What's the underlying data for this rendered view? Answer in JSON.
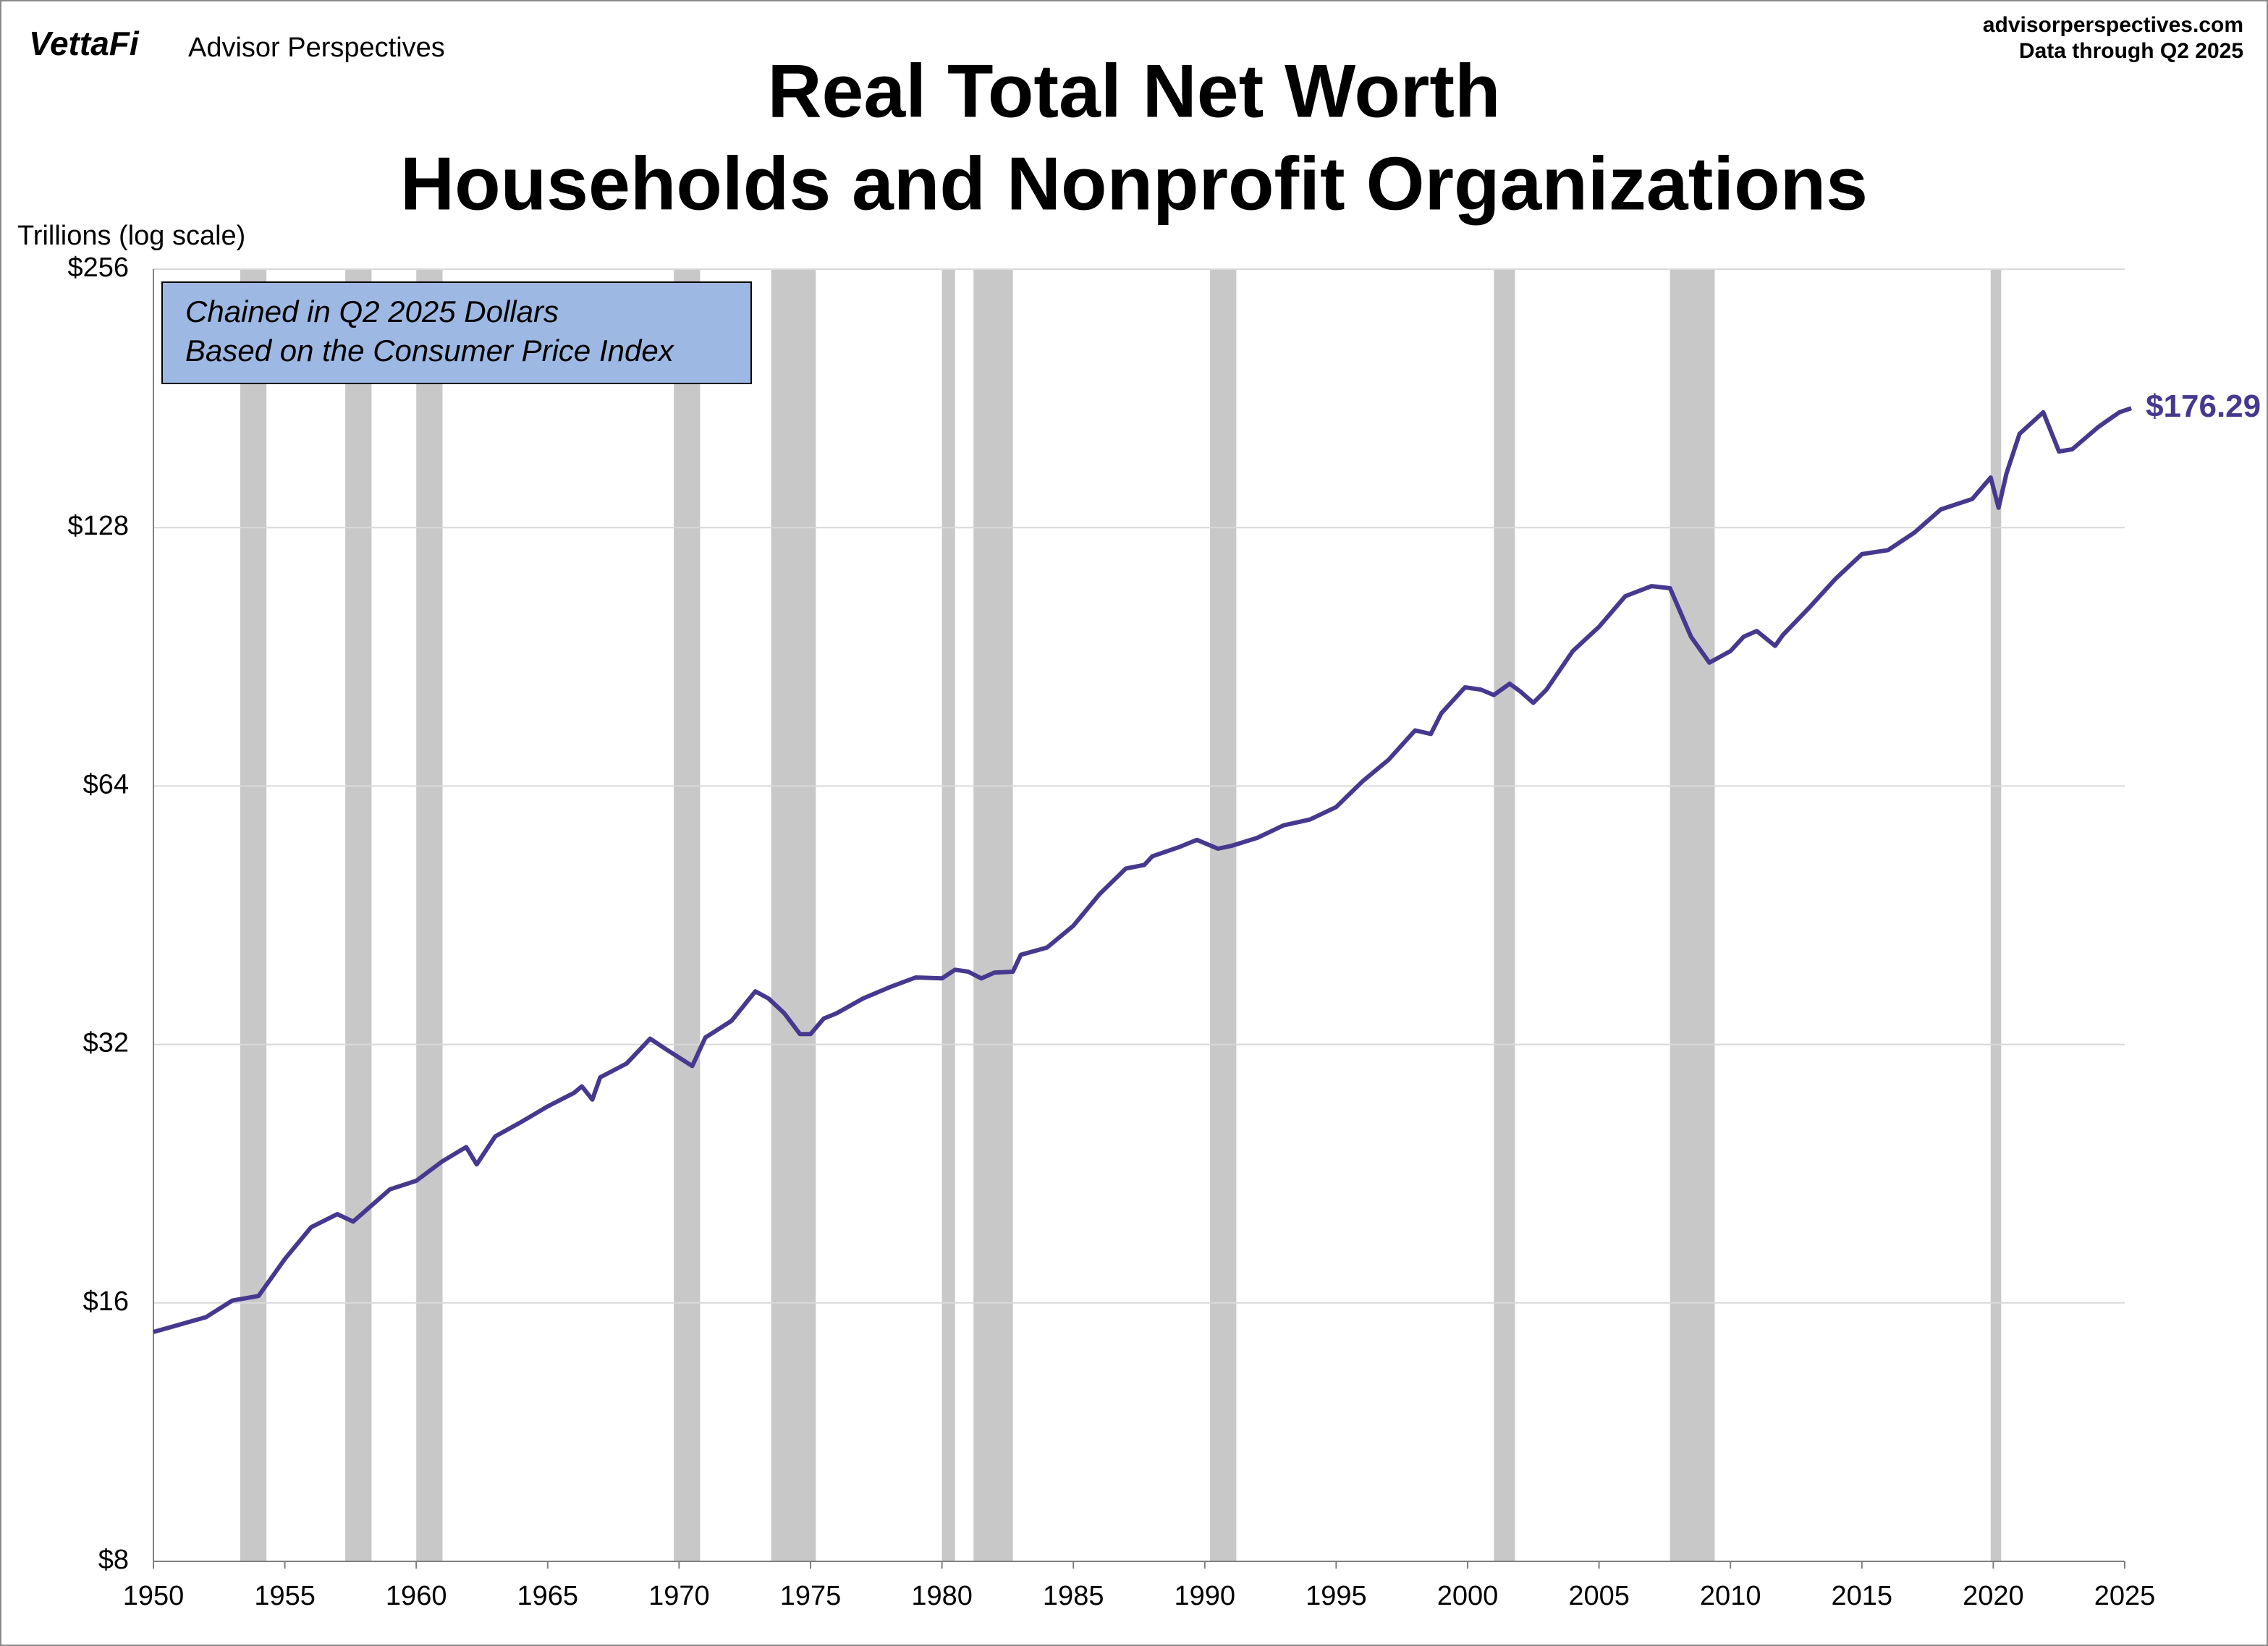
{
  "header": {
    "brand": "VettaFi",
    "brand_sub": "Advisor Perspectives",
    "site": "advisorperspectives.com",
    "data_note": "Data through Q2 2025"
  },
  "chart_data": {
    "type": "line",
    "title": "Real Total Net Worth",
    "subtitle": "Households and Nonprofit Organizations",
    "y_label": "Trillions (log scale)",
    "annotations": [
      "Chained in Q2 2025 Dollars",
      "Based on the Consumer Price Index"
    ],
    "log_scale": true,
    "grid": true,
    "xlim": [
      1950,
      2025
    ],
    "xticks": [
      1950,
      1955,
      1960,
      1965,
      1970,
      1975,
      1980,
      1985,
      1990,
      1995,
      2000,
      2005,
      2010,
      2015,
      2020,
      2025
    ],
    "ylim": [
      8,
      256
    ],
    "yticks": [
      {
        "value": 8,
        "label": "$8"
      },
      {
        "value": 16,
        "label": "$16"
      },
      {
        "value": 32,
        "label": "$32"
      },
      {
        "value": 64,
        "label": "$64"
      },
      {
        "value": 128,
        "label": "$128"
      },
      {
        "value": 256,
        "label": "$256"
      }
    ],
    "shaded_periods": [
      [
        1953.3,
        1954.3
      ],
      [
        1957.3,
        1958.3
      ],
      [
        1960.0,
        1961.0
      ],
      [
        1969.8,
        1970.8
      ],
      [
        1973.5,
        1975.2
      ],
      [
        1980.0,
        1980.5
      ],
      [
        1981.2,
        1982.7
      ],
      [
        1990.2,
        1991.2
      ],
      [
        2001.0,
        2001.8
      ],
      [
        2007.7,
        2009.4
      ],
      [
        2019.9,
        2020.3
      ]
    ],
    "shade_color": "#c8c8c8",
    "x": [
      1950,
      1952,
      1953,
      1954,
      1955,
      1956,
      1957,
      1957.6,
      1958,
      1959,
      1960,
      1961,
      1961.9,
      1962.3,
      1963,
      1964,
      1965,
      1966,
      1966.3,
      1966.7,
      1967,
      1968,
      1968.9,
      1969.5,
      1970.5,
      1971,
      1972,
      1972.9,
      1973.4,
      1974,
      1974.6,
      1975,
      1975.5,
      1976,
      1977,
      1978,
      1979,
      1980,
      1980.5,
      1981,
      1981.5,
      1982,
      1982.7,
      1983,
      1984,
      1985,
      1986,
      1987,
      1987.7,
      1988,
      1989,
      1989.7,
      1990.5,
      1991,
      1992,
      1993,
      1994,
      1995,
      1996,
      1997,
      1998,
      1998.6,
      1999,
      1999.9,
      2000.5,
      2001,
      2001.6,
      2002,
      2002.5,
      2003,
      2004,
      2005,
      2006,
      2007,
      2007.7,
      2008.5,
      2009.2,
      2010,
      2010.5,
      2011,
      2011.7,
      2012,
      2013,
      2014,
      2015,
      2016,
      2017,
      2018,
      2019.2,
      2019.9,
      2020.2,
      2020.5,
      2021,
      2021.9,
      2022.5,
      2023,
      2024,
      2024.8,
      2025.25
    ],
    "series": [
      {
        "color": "#47388f",
        "values": [
          14.8,
          15.4,
          16.1,
          16.3,
          18.0,
          19.6,
          20.3,
          19.9,
          20.4,
          21.7,
          22.2,
          23.4,
          24.3,
          23.2,
          25.0,
          26.0,
          27.1,
          28.1,
          28.6,
          27.6,
          29.3,
          30.4,
          32.5,
          31.6,
          30.2,
          32.6,
          34.1,
          36.9,
          36.2,
          34.8,
          32.9,
          32.9,
          34.3,
          34.8,
          36.2,
          37.3,
          38.3,
          38.2,
          39.1,
          38.9,
          38.2,
          38.8,
          38.9,
          40.7,
          41.5,
          44.0,
          47.9,
          51.3,
          51.8,
          53.0,
          54.3,
          55.4,
          54.1,
          54.5,
          55.7,
          57.6,
          58.5,
          60.5,
          64.8,
          68.7,
          74.3,
          73.6,
          77.8,
          83.4,
          82.9,
          81.7,
          84.2,
          82.5,
          80.0,
          82.9,
          91.9,
          98.1,
          106.5,
          109.4,
          108.8,
          95.5,
          89.1,
          91.9,
          95.5,
          97.0,
          93.2,
          96.0,
          103.3,
          111.6,
          119.2,
          120.5,
          126.3,
          134.4,
          138.2,
          146.4,
          135.0,
          148.0,
          164.6,
          174.4,
          157.0,
          157.9,
          167.7,
          174.4,
          176.29
        ],
        "value_labels": [
          null,
          null,
          null,
          null,
          null,
          null,
          null,
          null,
          null,
          null,
          null,
          null,
          null,
          null,
          null,
          null,
          null,
          null,
          null,
          null,
          null,
          null,
          null,
          null,
          null,
          null,
          null,
          null,
          null,
          null,
          null,
          null,
          null,
          null,
          null,
          null,
          null,
          null,
          null,
          null,
          null,
          null,
          null,
          null,
          null,
          null,
          null,
          null,
          null,
          null,
          null,
          null,
          null,
          null,
          null,
          null,
          null,
          null,
          null,
          null,
          null,
          null,
          null,
          null,
          null,
          null,
          null,
          null,
          null,
          null,
          null,
          null,
          null,
          null,
          null,
          null,
          null,
          null,
          null,
          null,
          null,
          null,
          null,
          null,
          null,
          null,
          null,
          null,
          null,
          null,
          null,
          null,
          null,
          null,
          null,
          null,
          null,
          null,
          "$176.29"
        ]
      }
    ]
  }
}
